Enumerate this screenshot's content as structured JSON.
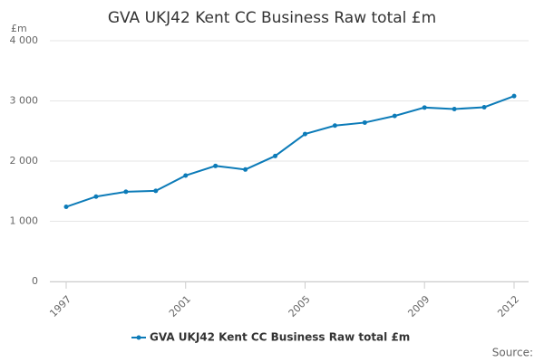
{
  "chart_data": {
    "type": "line",
    "title": "GVA UKJ42 Kent CC Business Raw total £m",
    "y_unit": "£m",
    "source": "Source:",
    "x": [
      1997,
      1998,
      1999,
      2000,
      2001,
      2002,
      2003,
      2004,
      2005,
      2006,
      2007,
      2008,
      2009,
      2010,
      2011,
      2012
    ],
    "series": [
      {
        "name": "GVA UKJ42 Kent CC Business Raw total £m",
        "color": "#0c7bb8",
        "values": [
          1240,
          1410,
          1490,
          1505,
          1760,
          1920,
          1860,
          2085,
          2450,
          2590,
          2640,
          2750,
          2890,
          2865,
          2895,
          3080
        ]
      }
    ],
    "xlim": [
      1997,
      2012
    ],
    "xticks": [
      1997,
      2001,
      2005,
      2009,
      2012
    ],
    "ylim": [
      0,
      4000
    ],
    "yticks": [
      0,
      {
        "value": 1000,
        "label": "1 000"
      },
      {
        "value": 2000,
        "label": "2 000"
      },
      {
        "value": 3000,
        "label": "3 000"
      },
      {
        "value": 4000,
        "label": "4 000"
      }
    ],
    "grid": true,
    "legend": "bottom"
  }
}
